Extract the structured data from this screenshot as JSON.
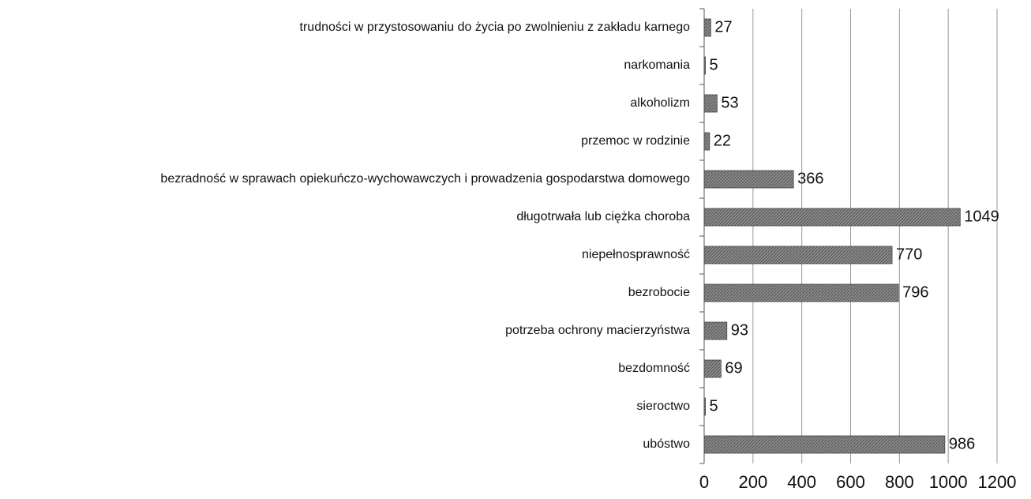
{
  "chart_data": {
    "type": "barh",
    "categories": [
      "trudności w przystosowaniu do życia po zwolnieniu z zakładu karnego",
      "narkomania",
      "alkoholizm",
      "przemoc w rodzinie",
      "bezradność w sprawach opiekuńczo-wychowawczych i prowadzenia gospodarstwa domowego",
      "długotrwała lub ciężka choroba",
      "niepełnosprawność",
      "bezrobocie",
      "potrzeba ochrony macierzyństwa",
      "bezdomność",
      "sieroctwo",
      "ubóstwo"
    ],
    "values": [
      27,
      5,
      53,
      22,
      366,
      1049,
      770,
      796,
      93,
      69,
      5,
      986
    ],
    "color": "#7a7a7a",
    "xlim": [
      0,
      1200
    ],
    "xticks": [
      0,
      200,
      400,
      600,
      800,
      1000,
      1200
    ],
    "grid": true
  }
}
